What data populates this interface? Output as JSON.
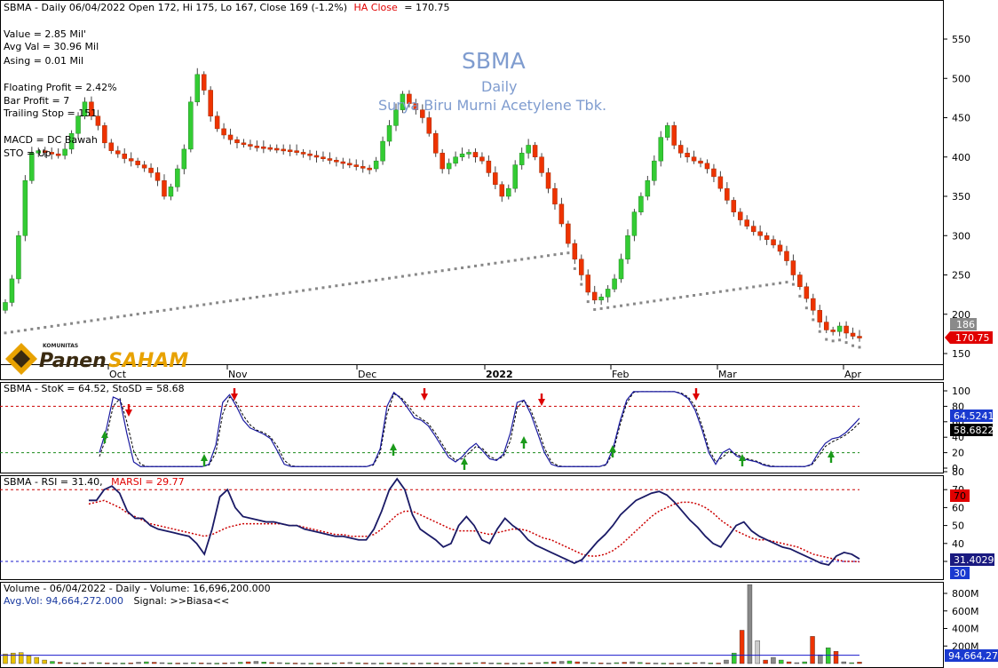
{
  "header": {
    "line": "SBMA - Daily 06/04/2022 Open 172, Hi 175, Lo 167, Close 169 (-1.2%)",
    "ha_label": "HA Close",
    "ha_value": "= 170.75"
  },
  "watermark": {
    "ticker": "SBMA",
    "period": "Daily",
    "company": "Surya Biru Murni Acetylene Tbk."
  },
  "info_block_1": [
    "Value = 2.85 Mil'",
    "Avg Val = 30.96 Mil",
    "Asing = 0.01 Mil"
  ],
  "info_block_2": [
    "Floating Profit = 2.42%",
    "Bar Profit = 7",
    "Trailing Stop = 151"
  ],
  "info_block_3": [
    "MACD = DC Bawah",
    "STO = Up"
  ],
  "logo": {
    "small": "KOMUNITAS",
    "brand_a": "Panen",
    "brand_b": "SAHAM"
  },
  "x_months": [
    "Oct",
    "Nov",
    "Dec",
    "2022",
    "Feb",
    "Mar",
    "Apr"
  ],
  "price_axis": {
    "ticks": [
      "550",
      "500",
      "450",
      "400",
      "350",
      "300",
      "250",
      "200",
      "150"
    ],
    "marker_gray": "186",
    "marker_red": "170.75"
  },
  "stoch": {
    "label": "SBMA - StoK = 64.52, StoSD = 58.68",
    "ticks": [
      "100",
      "80",
      "60",
      "40",
      "20",
      "0"
    ],
    "marker_k": "64.5241",
    "marker_d": "58.6822"
  },
  "rsi": {
    "label_a": "SBMA - RSI = 31.40,",
    "label_b": "MARSI = 29.77",
    "ticks": [
      "80",
      "70",
      "60",
      "50",
      "40",
      "30"
    ],
    "marker_70": "70",
    "marker_rsi": "31.4029",
    "marker_30": "30"
  },
  "volume": {
    "label": "Volume - 06/04/2022 - Daily - Volume: 16,696,200.000",
    "avg_label": "Avg.Vol: 94,664,272.000",
    "signal": "Signal: >>Biasa<<",
    "ticks": [
      "800M",
      "600M",
      "400M",
      "200M"
    ],
    "marker": "94,664,27"
  },
  "colors": {
    "up": "#33cc33",
    "down": "#ee3300",
    "sar": "#888888",
    "k_line": "#1a1aa0",
    "rsi_line": "#1a1a66",
    "marsi": "#cc0000"
  },
  "chart_data": {
    "type": "candlestick",
    "period": "Daily",
    "ticker": "SBMA",
    "last": {
      "date": "06/04/2022",
      "open": 172,
      "high": 175,
      "low": 167,
      "close": 169,
      "change_pct": -1.2,
      "ha_close": 170.75
    },
    "price_ylim": [
      130,
      580
    ],
    "close_approx": [
      215,
      245,
      300,
      370,
      405,
      408,
      406,
      404,
      402,
      410,
      430,
      452,
      470,
      452,
      440,
      418,
      408,
      404,
      398,
      395,
      390,
      386,
      380,
      370,
      350,
      362,
      385,
      410,
      470,
      505,
      485,
      452,
      436,
      428,
      422,
      418,
      416,
      414,
      413,
      412,
      411,
      410,
      409,
      408,
      406,
      404,
      402,
      400,
      398,
      396,
      394,
      392,
      390,
      388,
      386,
      385,
      395,
      420,
      440,
      460,
      480,
      468,
      460,
      450,
      430,
      405,
      385,
      392,
      400,
      404,
      406,
      400,
      395,
      380,
      365,
      350,
      360,
      390,
      405,
      415,
      400,
      380,
      360,
      340,
      315,
      290,
      270,
      250,
      228,
      218,
      222,
      232,
      245,
      270,
      300,
      330,
      350,
      370,
      395,
      425,
      440,
      415,
      405,
      400,
      395,
      392,
      385,
      375,
      360,
      345,
      330,
      320,
      312,
      305,
      300,
      295,
      288,
      280,
      268,
      250,
      235,
      220,
      205,
      190,
      180,
      178,
      185,
      176,
      172,
      170
    ],
    "stoch_ylim": [
      0,
      100
    ],
    "stoch_levels": [
      80,
      20
    ],
    "stoch_k": [
      20,
      50,
      92,
      88,
      45,
      8,
      2,
      2,
      2,
      2,
      2,
      2,
      2,
      2,
      2,
      2,
      5,
      30,
      85,
      95,
      80,
      62,
      52,
      48,
      44,
      38,
      22,
      5,
      2,
      2,
      2,
      2,
      2,
      2,
      2,
      2,
      2,
      2,
      2,
      2,
      5,
      25,
      80,
      98,
      90,
      78,
      65,
      62,
      55,
      42,
      28,
      14,
      8,
      15,
      25,
      32,
      22,
      12,
      10,
      18,
      45,
      85,
      88,
      70,
      45,
      20,
      5,
      2,
      2,
      2,
      2,
      2,
      2,
      2,
      5,
      25,
      60,
      88,
      99,
      99,
      99,
      99,
      99,
      99,
      99,
      96,
      90,
      75,
      50,
      20,
      5,
      20,
      25,
      16,
      12,
      10,
      8,
      4,
      2,
      2,
      2,
      2,
      2,
      2,
      5,
      20,
      32,
      38,
      40,
      46,
      55,
      64.52
    ],
    "stoch_d": [
      15,
      40,
      80,
      90,
      60,
      22,
      5,
      2,
      2,
      2,
      2,
      2,
      2,
      2,
      2,
      2,
      4,
      20,
      70,
      92,
      85,
      68,
      56,
      49,
      46,
      40,
      28,
      10,
      3,
      2,
      2,
      2,
      2,
      2,
      2,
      2,
      2,
      2,
      2,
      2,
      4,
      20,
      70,
      96,
      92,
      82,
      70,
      64,
      58,
      46,
      32,
      18,
      10,
      12,
      20,
      28,
      25,
      15,
      11,
      15,
      35,
      78,
      88,
      75,
      52,
      26,
      8,
      3,
      2,
      2,
      2,
      2,
      2,
      2,
      4,
      20,
      55,
      84,
      98,
      99,
      99,
      99,
      99,
      99,
      99,
      97,
      92,
      80,
      55,
      25,
      8,
      14,
      22,
      18,
      14,
      11,
      9,
      5,
      3,
      2,
      2,
      2,
      2,
      2,
      4,
      15,
      28,
      34,
      38,
      43,
      50,
      58.68
    ],
    "rsi_ylim": [
      25,
      82
    ],
    "rsi_levels": [
      70,
      30
    ],
    "rsi": [
      64,
      64,
      70,
      72,
      68,
      58,
      54,
      54,
      50,
      48,
      47,
      46,
      45,
      44,
      40,
      34,
      48,
      66,
      70,
      60,
      55,
      54,
      53,
      52,
      52,
      51,
      50,
      50,
      48,
      47,
      46,
      45,
      44,
      44,
      43,
      42,
      42,
      48,
      58,
      70,
      76,
      70,
      56,
      48,
      45,
      42,
      38,
      40,
      50,
      55,
      50,
      42,
      40,
      48,
      54,
      50,
      47,
      42,
      39,
      37,
      35,
      33,
      31,
      29,
      31,
      36,
      41,
      45,
      50,
      56,
      60,
      64,
      66,
      68,
      69,
      67,
      63,
      58,
      53,
      49,
      44,
      40,
      38,
      44,
      50,
      52,
      47,
      44,
      42,
      40,
      38,
      37,
      35,
      33,
      31,
      29,
      28,
      33,
      35,
      34,
      31.4
    ],
    "marsi": [
      62,
      63,
      64,
      62,
      60,
      57,
      55,
      53,
      51,
      50,
      49,
      48,
      47,
      46,
      45,
      44,
      45,
      47,
      49,
      50,
      51,
      51,
      51,
      51,
      51,
      51,
      50,
      50,
      49,
      48,
      47,
      46,
      45,
      45,
      44,
      44,
      44,
      45,
      48,
      52,
      56,
      58,
      58,
      56,
      54,
      52,
      50,
      48,
      47,
      47,
      47,
      46,
      45,
      46,
      47,
      48,
      48,
      47,
      45,
      43,
      42,
      40,
      38,
      36,
      34,
      33,
      33,
      34,
      36,
      39,
      43,
      47,
      51,
      55,
      58,
      60,
      62,
      63,
      63,
      62,
      60,
      57,
      53,
      50,
      47,
      45,
      43,
      42,
      42,
      41,
      40,
      39,
      38,
      36,
      34,
      33,
      32,
      31,
      30,
      30,
      29.77
    ],
    "volume_ylim_M": [
      0,
      900
    ],
    "volume_M": [
      110,
      120,
      125,
      90,
      70,
      40,
      25,
      15,
      10,
      8,
      8,
      12,
      10,
      8,
      6,
      6,
      8,
      15,
      20,
      15,
      10,
      8,
      6,
      8,
      10,
      8,
      6,
      5,
      8,
      10,
      15,
      20,
      25,
      18,
      12,
      10,
      8,
      6,
      5,
      5,
      5,
      6,
      8,
      10,
      12,
      8,
      6,
      5,
      6,
      8,
      6,
      5,
      5,
      6,
      8,
      6,
      5,
      5,
      6,
      8,
      10,
      12,
      8,
      6,
      5,
      5,
      6,
      8,
      10,
      15,
      20,
      25,
      30,
      20,
      15,
      10,
      8,
      6,
      10,
      15,
      20,
      12,
      8,
      6,
      5,
      5,
      6,
      8,
      10,
      12,
      8,
      6,
      40,
      120,
      380,
      950,
      260,
      40,
      70,
      40,
      20,
      10,
      20,
      310,
      100,
      180,
      140,
      20,
      10,
      16.7
    ],
    "avg_vol_M": 94.66
  }
}
